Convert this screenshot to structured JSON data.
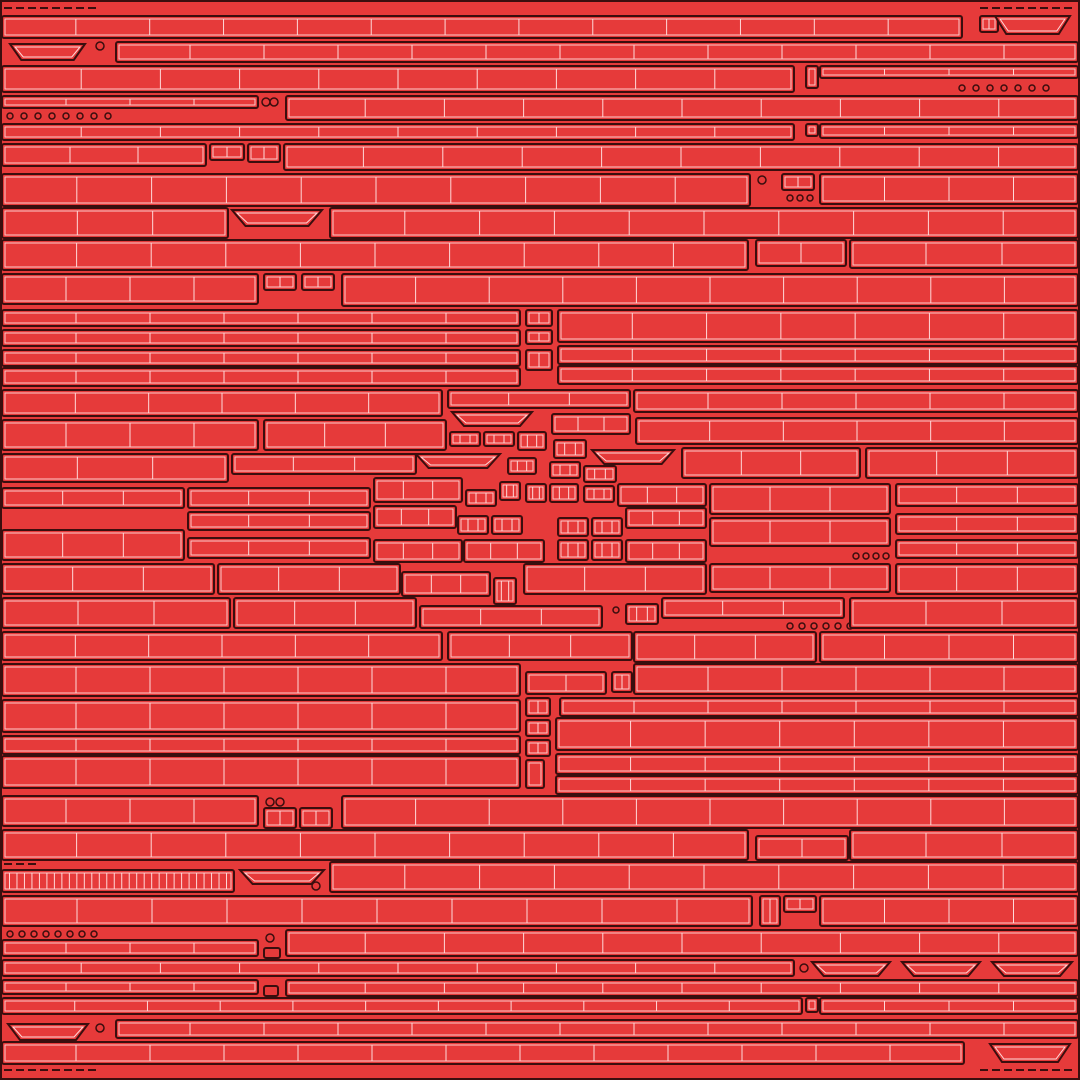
{
  "canvas": {
    "background": "#e63a3a",
    "panel_outline": "#3a0e0e",
    "panel_ribs": "#ffd9d9"
  },
  "texture": {
    "panels": "strip",
    "center_cluster": "tile",
    "connectors": "circle",
    "brackets": "trapezoid"
  }
}
